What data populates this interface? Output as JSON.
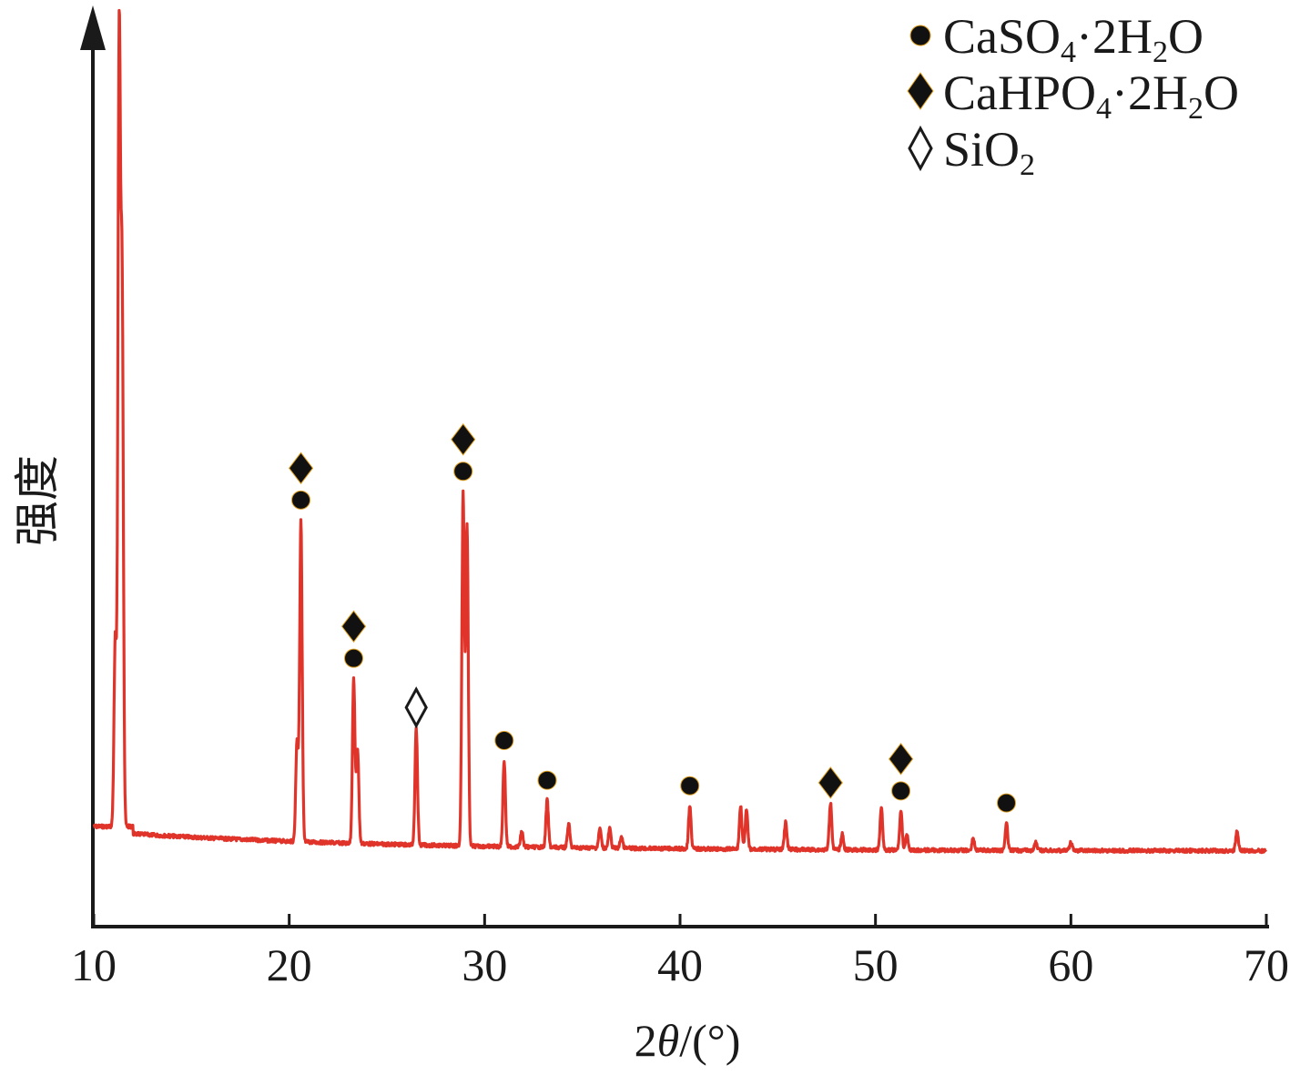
{
  "chart_data": {
    "type": "line",
    "title": "",
    "xlabel_prefix": "2",
    "xlabel_symbol": "θ",
    "xlabel_suffix": "/(°)",
    "ylabel": "强度",
    "xlim": [
      10,
      70
    ],
    "y_ticks_shown": false,
    "grid": false,
    "x_ticks": [
      "10",
      "20",
      "30",
      "40",
      "50",
      "60",
      "70"
    ],
    "series": [
      {
        "color": "#e0342a",
        "peaks": [
          {
            "x": 11.3,
            "height": 100
          },
          {
            "x": 11.45,
            "height": 68
          },
          {
            "x": 11.1,
            "height": 24
          },
          {
            "x": 20.6,
            "height": 41
          },
          {
            "x": 20.4,
            "height": 13
          },
          {
            "x": 23.3,
            "height": 21
          },
          {
            "x": 23.5,
            "height": 12
          },
          {
            "x": 26.5,
            "height": 15
          },
          {
            "x": 28.9,
            "height": 45
          },
          {
            "x": 29.1,
            "height": 41
          },
          {
            "x": 31.0,
            "height": 11
          },
          {
            "x": 31.9,
            "height": 2
          },
          {
            "x": 33.2,
            "height": 6
          },
          {
            "x": 34.3,
            "height": 3
          },
          {
            "x": 35.9,
            "height": 2.5
          },
          {
            "x": 36.4,
            "height": 2.5
          },
          {
            "x": 37.0,
            "height": 1.5
          },
          {
            "x": 40.5,
            "height": 5.5
          },
          {
            "x": 43.1,
            "height": 5.5
          },
          {
            "x": 43.4,
            "height": 5
          },
          {
            "x": 45.4,
            "height": 3.5
          },
          {
            "x": 47.7,
            "height": 6
          },
          {
            "x": 48.3,
            "height": 2
          },
          {
            "x": 50.3,
            "height": 5.5
          },
          {
            "x": 51.3,
            "height": 5
          },
          {
            "x": 51.6,
            "height": 2
          },
          {
            "x": 55.0,
            "height": 1.5
          },
          {
            "x": 56.7,
            "height": 3.5
          },
          {
            "x": 58.2,
            "height": 1
          },
          {
            "x": 60.0,
            "height": 1
          },
          {
            "x": 68.5,
            "height": 2.5
          }
        ]
      }
    ],
    "legend": {
      "position": "top-right",
      "entries": [
        {
          "marker": "filled-circle",
          "label_main": "CaSO",
          "sub1": "4",
          "mid": "·2H",
          "sub2": "2",
          "tail": "O"
        },
        {
          "marker": "filled-diamond",
          "label_main": "CaHPO",
          "sub1": "4",
          "mid": "·2H",
          "sub2": "2",
          "tail": "O"
        },
        {
          "marker": "open-diamond",
          "label_main": "SiO",
          "sub1": "2",
          "mid": "",
          "sub2": "",
          "tail": ""
        }
      ]
    },
    "annotations": [
      {
        "x": 11.3,
        "markers": [
          "filled-circle"
        ]
      },
      {
        "x": 20.6,
        "markers": [
          "filled-circle",
          "filled-diamond"
        ]
      },
      {
        "x": 23.3,
        "markers": [
          "filled-circle",
          "filled-diamond"
        ]
      },
      {
        "x": 26.5,
        "markers": [
          "open-diamond"
        ]
      },
      {
        "x": 28.9,
        "markers": [
          "filled-circle",
          "filled-diamond"
        ]
      },
      {
        "x": 31.0,
        "markers": [
          "filled-circle"
        ]
      },
      {
        "x": 33.2,
        "markers": [
          "filled-circle"
        ]
      },
      {
        "x": 40.5,
        "markers": [
          "filled-circle"
        ]
      },
      {
        "x": 47.7,
        "markers": [
          "filled-diamond"
        ]
      },
      {
        "x": 51.3,
        "markers": [
          "filled-circle",
          "filled-diamond"
        ]
      },
      {
        "x": 56.7,
        "markers": [
          "filled-circle"
        ]
      }
    ]
  }
}
